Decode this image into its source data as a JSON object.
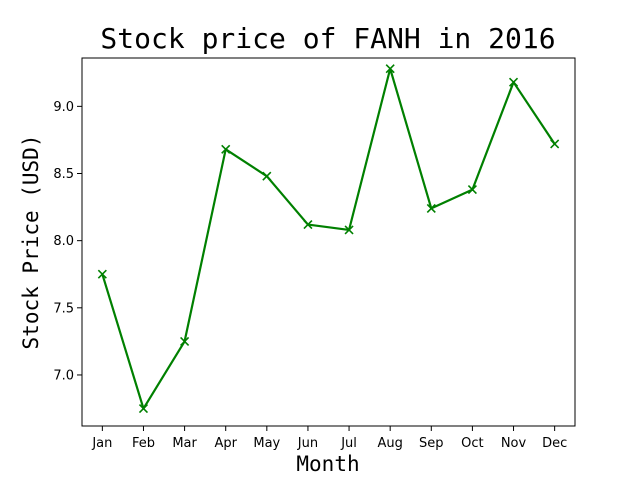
{
  "chart_data": {
    "type": "line",
    "title": "Stock price of FANH in 2016",
    "xlabel": "Month",
    "ylabel": "Stock Price (USD)",
    "categories": [
      "Jan",
      "Feb",
      "Mar",
      "Apr",
      "May",
      "Jun",
      "Jul",
      "Aug",
      "Sep",
      "Oct",
      "Nov",
      "Dec"
    ],
    "series": [
      {
        "values": [
          7.75,
          6.75,
          7.25,
          8.68,
          8.48,
          8.12,
          8.08,
          9.28,
          8.24,
          8.38,
          9.18,
          8.72
        ],
        "color": "#008000",
        "marker": "x"
      }
    ],
    "ylim": [
      6.62,
      9.36
    ],
    "yticks": [
      {
        "value": 7.0,
        "label": "7.0"
      },
      {
        "value": 7.5,
        "label": "7.5"
      },
      {
        "value": 8.0,
        "label": "8.0"
      },
      {
        "value": 8.5,
        "label": "8.5"
      },
      {
        "value": 9.0,
        "label": "9.0"
      }
    ],
    "grid": false,
    "legend": "none"
  }
}
